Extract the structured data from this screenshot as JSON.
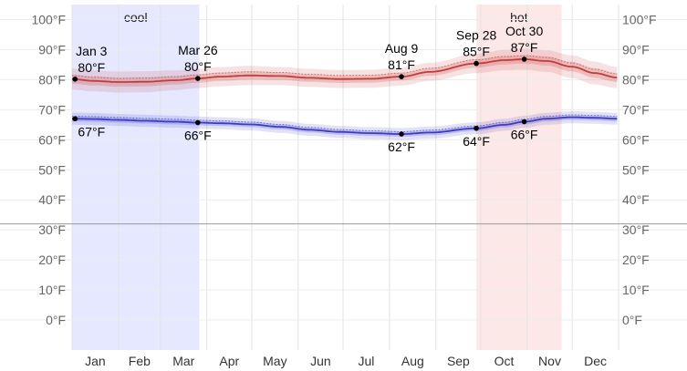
{
  "chart_data": {
    "type": "line",
    "x_unit": "day_of_year",
    "ylim": [
      -10,
      105
    ],
    "y_ticks": [
      0,
      10,
      20,
      30,
      40,
      50,
      60,
      70,
      80,
      90,
      100
    ],
    "tick_suffix": "°F",
    "freezing_line": 32,
    "months": [
      "Jan",
      "Feb",
      "Mar",
      "Apr",
      "May",
      "Jun",
      "Jul",
      "Aug",
      "Sep",
      "Oct",
      "Nov",
      "Dec"
    ],
    "seasons": [
      {
        "label": "cool",
        "start_day": 1,
        "end_day": 86,
        "color": "#e6e8ff"
      },
      {
        "label": "hot",
        "start_day": 271,
        "end_day": 328,
        "color": "#fde8e8"
      }
    ],
    "series": [
      {
        "color": "#c43b3b",
        "x": [
          1,
          15,
          32,
          50,
          70,
          85,
          100,
          120,
          140,
          160,
          180,
          200,
          221,
          240,
          271,
          290,
          303,
          318,
          335,
          350,
          365
        ],
        "values": [
          80.2,
          79.6,
          79.2,
          79.3,
          79.8,
          80.4,
          81.0,
          81.4,
          81.2,
          80.6,
          80.2,
          80.3,
          81.0,
          82.6,
          85.4,
          86.5,
          86.8,
          86.2,
          84.3,
          82.2,
          80.7
        ],
        "band_inner": [
          1.5,
          1.5,
          1.5,
          1.5,
          1.4,
          1.4,
          1.4,
          1.4,
          1.3,
          1.3,
          1.3,
          1.3,
          1.3,
          1.3,
          1.4,
          1.4,
          1.4,
          1.5,
          1.6,
          1.6,
          1.5
        ],
        "band_outer": [
          3.5,
          3.5,
          3.5,
          3.5,
          3.3,
          3.2,
          3.2,
          3.2,
          3.0,
          3.0,
          3.0,
          3.0,
          3.0,
          3.0,
          3.2,
          3.4,
          3.5,
          3.6,
          3.8,
          3.8,
          3.5
        ],
        "dotted_offset": 1.2
      },
      {
        "color": "#3b3bc4",
        "x": [
          1,
          15,
          32,
          50,
          70,
          85,
          100,
          120,
          140,
          160,
          180,
          200,
          221,
          240,
          271,
          290,
          303,
          318,
          335,
          350,
          365
        ],
        "values": [
          67.0,
          66.9,
          66.6,
          66.3,
          66.0,
          65.7,
          65.5,
          65.1,
          64.3,
          63.3,
          62.6,
          62.2,
          61.9,
          62.4,
          63.8,
          65.0,
          66.0,
          67.0,
          67.5,
          67.3,
          67.0
        ],
        "band_inner": [
          0.9,
          0.9,
          0.9,
          0.9,
          0.9,
          0.9,
          0.9,
          0.9,
          0.9,
          0.9,
          0.9,
          0.9,
          0.9,
          0.9,
          0.9,
          0.9,
          0.9,
          0.9,
          0.9,
          0.9,
          0.9
        ],
        "band_outer": [
          2.0,
          2.0,
          2.0,
          2.0,
          2.0,
          2.0,
          2.0,
          2.0,
          2.0,
          2.0,
          2.0,
          2.0,
          2.0,
          2.0,
          2.0,
          2.0,
          2.0,
          2.0,
          2.0,
          2.0,
          2.0
        ],
        "dotted_offset": 0.8
      }
    ],
    "annotations": [
      {
        "series": 0,
        "day": 3,
        "value": 80,
        "date": "Jan 3",
        "text": "80°F",
        "pos": "above"
      },
      {
        "series": 0,
        "day": 85,
        "value": 80,
        "date": "Mar 26",
        "text": "80°F",
        "pos": "above"
      },
      {
        "series": 0,
        "day": 221,
        "value": 81,
        "date": "Aug 9",
        "text": "81°F",
        "pos": "above"
      },
      {
        "series": 0,
        "day": 271,
        "value": 85,
        "date": "Sep 28",
        "text": "85°F",
        "pos": "above"
      },
      {
        "series": 0,
        "day": 303,
        "value": 87,
        "date": "Oct 30",
        "text": "87°F",
        "pos": "above"
      },
      {
        "series": 1,
        "day": 3,
        "value": 67,
        "text": "67°F",
        "pos": "below"
      },
      {
        "series": 1,
        "day": 85,
        "value": 66,
        "text": "66°F",
        "pos": "below"
      },
      {
        "series": 1,
        "day": 221,
        "value": 62,
        "text": "62°F",
        "pos": "below"
      },
      {
        "series": 1,
        "day": 271,
        "value": 64,
        "text": "64°F",
        "pos": "below"
      },
      {
        "series": 1,
        "day": 303,
        "value": 66,
        "text": "66°F",
        "pos": "below"
      }
    ]
  }
}
